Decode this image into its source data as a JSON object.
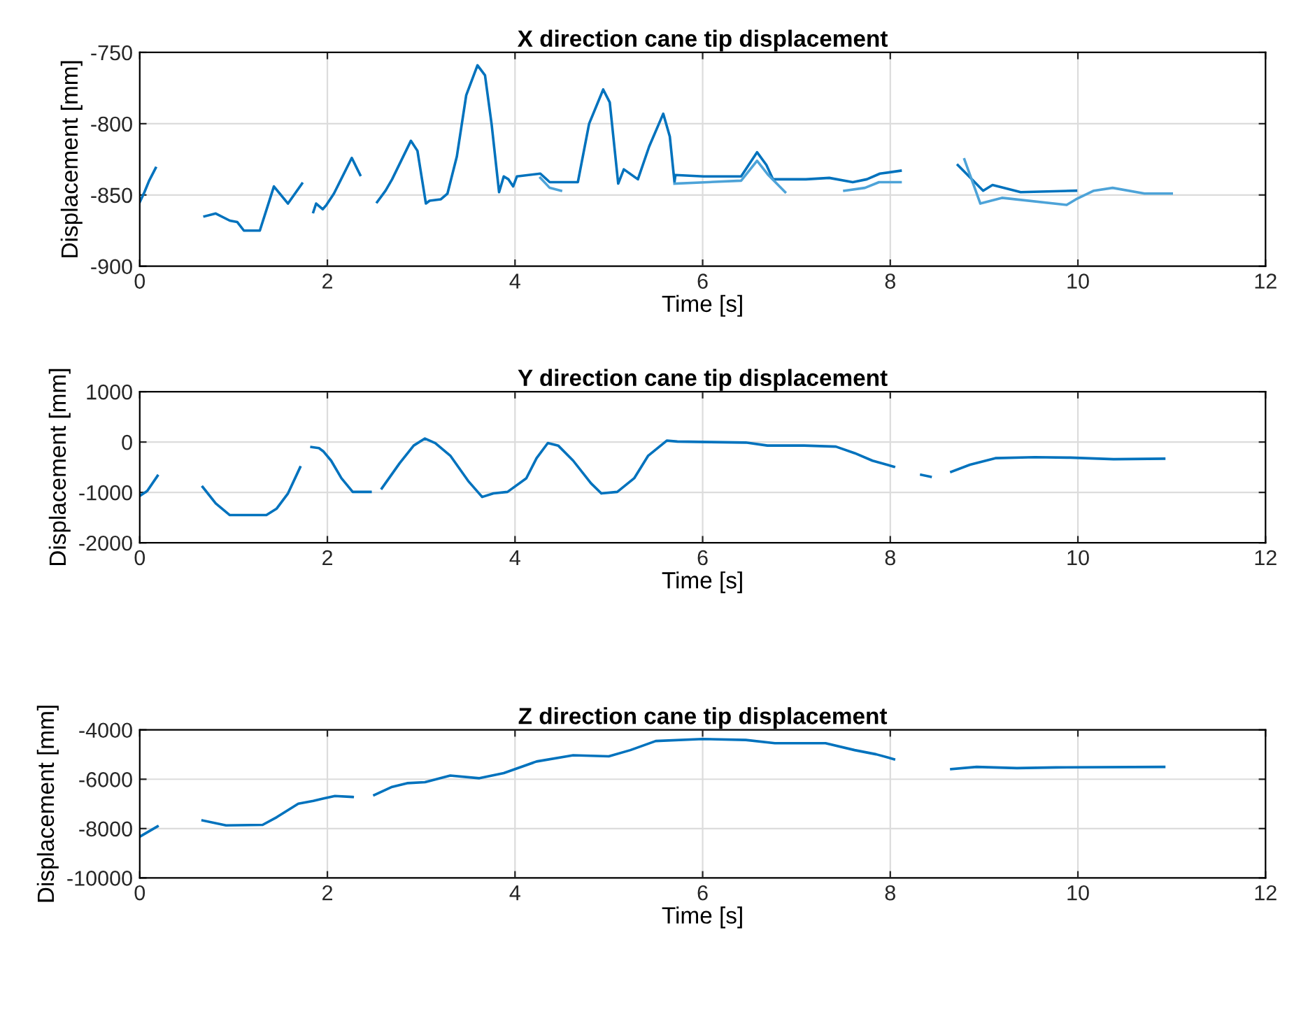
{
  "chart_data": [
    {
      "type": "line",
      "title": "X direction cane tip displacement",
      "xlabel": "Time [s]",
      "ylabel": "Displacement [mm]",
      "xlim": [
        0,
        12
      ],
      "xticks": [
        0,
        2,
        4,
        6,
        8,
        10,
        12
      ],
      "ylim": [
        -900,
        -750
      ],
      "yticks": [
        -900,
        -850,
        -800,
        -750
      ],
      "grid": true,
      "marker": "none",
      "line_style": "solid",
      "series": [
        {
          "color": "#0072bd",
          "x": [
            0,
            0.05,
            0.1,
            0.17,
            0.4,
            0.69,
            0.81,
            0.96,
            1.04,
            1.11,
            1.28,
            1.43,
            1.58,
            1.73,
            1.8,
            1.85,
            1.88,
            1.95,
            1.99,
            2.07,
            2.26,
            2.35,
            2.45,
            2.53,
            2.62,
            2.69,
            2.89,
            2.96,
            3.05,
            3.09,
            3.21,
            3.28,
            3.38,
            3.48,
            3.6,
            3.68,
            3.75,
            3.83,
            3.88,
            3.93,
            3.98,
            4.02,
            4.27,
            4.37,
            4.67,
            4.79,
            4.94,
            5.01,
            5.1,
            5.16,
            5.31,
            5.43,
            5.58,
            5.65,
            5.7,
            5.71,
            6.01,
            6.41,
            6.58,
            6.68,
            6.75,
            7.1,
            7.35,
            7.6,
            7.75,
            7.89,
            8.11,
            8.4,
            8.72,
            8.99,
            9.09,
            9.39,
            9.98
          ],
          "values": [
            -855,
            -848,
            -840,
            -831,
            null,
            -865,
            -863,
            -868,
            -869,
            -875,
            -875,
            -844,
            -856,
            -842,
            null,
            -862,
            -856,
            -860,
            -857,
            -849,
            -824,
            -836,
            null,
            -855,
            -847,
            -839,
            -812,
            -819,
            -856,
            -854,
            -853,
            -849,
            -823,
            -780,
            -759,
            -766,
            -800,
            -848,
            -837,
            -839,
            -844,
            -837,
            -835,
            -841,
            -841,
            -800,
            -776,
            -785,
            -842,
            -832,
            -839,
            -816,
            -793,
            -809,
            -841,
            -836,
            -837,
            -837,
            -820,
            -829,
            -839,
            -839,
            -838,
            -841,
            -839,
            -835,
            -833,
            null,
            -829,
            -847,
            -843,
            -848,
            -847
          ]
        },
        {
          "color": "#4da3d8",
          "x": [
            4.27,
            4.37,
            4.49,
            5.0,
            5.7,
            6.41,
            6.58,
            6.7,
            6.88,
            7.2,
            7.51,
            7.73,
            7.88,
            8.11,
            8.4,
            8.79,
            8.96,
            9.19,
            9.88,
            9.98,
            10.17,
            10.37,
            10.71,
            11.0
          ],
          "values": [
            -838,
            -845,
            -847,
            null,
            -842,
            -840,
            -826,
            -836,
            -848,
            null,
            -847,
            -845,
            -841,
            -841,
            null,
            -825,
            -856,
            -852,
            -857,
            -853,
            -847,
            -845,
            -849,
            -849
          ]
        }
      ]
    },
    {
      "type": "line",
      "title": "Y direction cane tip displacement",
      "xlabel": "Time [s]",
      "ylabel": "Displacement [mm]",
      "xlim": [
        0,
        12
      ],
      "xticks": [
        0,
        2,
        4,
        6,
        8,
        10,
        12
      ],
      "ylim": [
        -2000,
        1000
      ],
      "yticks": [
        -2000,
        -1000,
        0,
        1000
      ],
      "grid": true,
      "marker": "none",
      "line_style": "solid",
      "series": [
        {
          "color": "#0072bd",
          "x": [
            0,
            0.08,
            0.19,
            0.4,
            0.67,
            0.81,
            0.96,
            1.35,
            1.46,
            1.58,
            1.71,
            1.77,
            1.83,
            1.91,
            1.96,
            2.04,
            2.15,
            2.27,
            2.46,
            2.52,
            2.58,
            2.77,
            2.92,
            3.04,
            3.15,
            3.31,
            3.5,
            3.65,
            3.77,
            3.92,
            4.12,
            4.23,
            4.35,
            4.46,
            4.62,
            4.81,
            4.92,
            5.09,
            5.27,
            5.42,
            5.62,
            5.73,
            6.08,
            6.46,
            6.69,
            7.08,
            7.42,
            7.62,
            7.81,
            8.04,
            8.2,
            8.33,
            8.43,
            8.5,
            8.65,
            8.85,
            9.12,
            9.54,
            9.92,
            10.38,
            10.92
          ],
          "values": [
            -1070,
            -970,
            -670,
            null,
            -890,
            -1220,
            -1450,
            -1450,
            -1320,
            -1020,
            -500,
            null,
            -100,
            -120,
            -190,
            -370,
            -720,
            -990,
            -990,
            null,
            -920,
            -420,
            -70,
            70,
            -20,
            -270,
            -770,
            -1090,
            -1020,
            -990,
            -720,
            -320,
            -20,
            -70,
            -370,
            -820,
            -1020,
            -990,
            -720,
            -270,
            30,
            10,
            0,
            -10,
            -70,
            -70,
            -90,
            -220,
            -370,
            -490,
            null,
            -650,
            -690,
            null,
            -590,
            -450,
            -320,
            -300,
            -310,
            -340,
            -330
          ]
        }
      ]
    },
    {
      "type": "line",
      "title": "Z direction cane tip displacement",
      "xlabel": "Time [s]",
      "ylabel": "Displacement [mm]",
      "xlim": [
        0,
        12
      ],
      "xticks": [
        0,
        2,
        4,
        6,
        8,
        10,
        12
      ],
      "ylim": [
        -10000,
        -4000
      ],
      "yticks": [
        -10000,
        -8000,
        -6000,
        -4000
      ],
      "grid": true,
      "marker": "none",
      "line_style": "solid",
      "series": [
        {
          "color": "#0072bd",
          "x": [
            0,
            0.19,
            0.4,
            0.67,
            0.92,
            1.31,
            1.46,
            1.69,
            1.85,
            1.96,
            2.08,
            2.27,
            2.4,
            2.5,
            2.69,
            2.85,
            3.04,
            3.31,
            3.62,
            3.88,
            4.23,
            4.62,
            5.0,
            5.23,
            5.5,
            6.0,
            6.46,
            6.77,
            7.31,
            7.62,
            7.85,
            8.04,
            8.3,
            8.65,
            8.92,
            9.35,
            9.77,
            10.92
          ],
          "values": [
            -8330,
            -7910,
            null,
            -7670,
            -7870,
            -7850,
            -7540,
            -6990,
            -6880,
            -6780,
            -6680,
            -6720,
            null,
            -6640,
            -6310,
            -6160,
            -6120,
            -5850,
            -5960,
            -5750,
            -5280,
            -5030,
            -5070,
            -4820,
            -4450,
            -4370,
            -4410,
            -4540,
            -4540,
            -4820,
            -4990,
            -5190,
            null,
            -5590,
            -5500,
            -5550,
            -5520,
            -5500
          ]
        }
      ]
    }
  ]
}
